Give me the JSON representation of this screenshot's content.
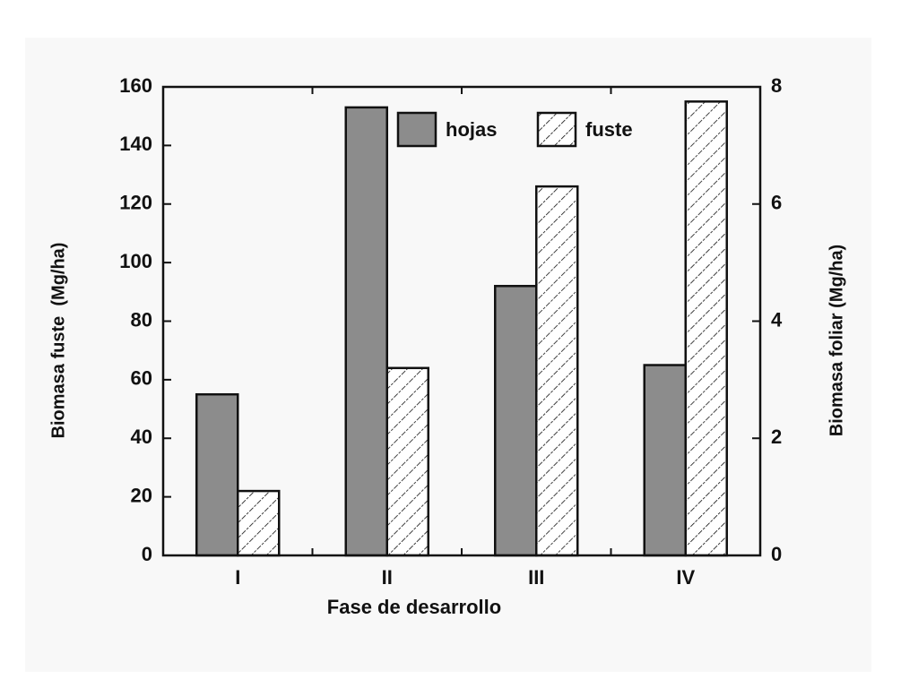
{
  "chart_data": {
    "type": "bar",
    "xlabel": "Fase de desarrollo",
    "ylabel": "Biomasa fuste  (Mg/ha)",
    "y2label": "Biomasa foliar (Mg/ha)",
    "categories": [
      "I",
      "II",
      "III",
      "IV"
    ],
    "series": [
      {
        "name": "hojas",
        "color": "#8c8c8c",
        "axis": "y2",
        "values": [
          2.75,
          7.65,
          4.6,
          3.25
        ]
      },
      {
        "name": "fuste",
        "color": "#ffffff",
        "pattern": "hatch",
        "values": [
          22,
          64,
          126,
          155
        ]
      }
    ],
    "ylim": [
      0,
      160
    ],
    "yticks": [
      0,
      20,
      40,
      60,
      80,
      100,
      120,
      140,
      160
    ],
    "y2lim": [
      0,
      8
    ],
    "y2ticks": [
      0,
      2,
      4,
      6,
      8
    ],
    "grid": false
  }
}
